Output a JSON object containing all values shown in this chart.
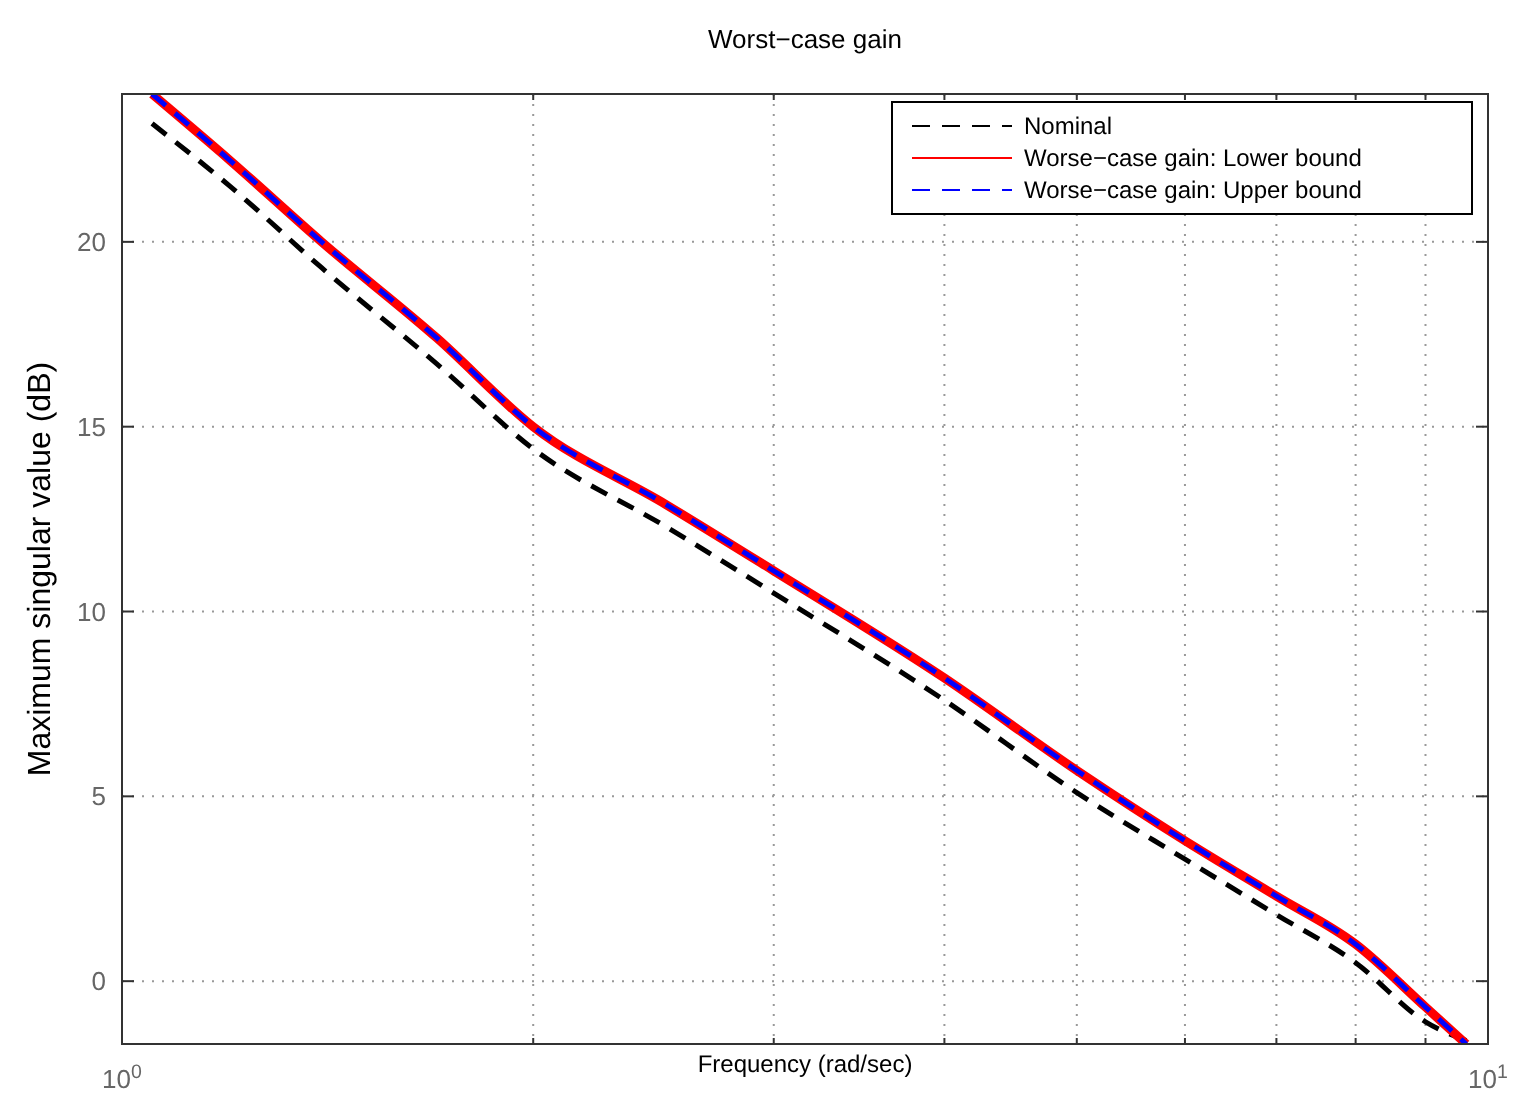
{
  "chart_data": {
    "type": "line",
    "title": "Worst−case gain",
    "xlabel": "Frequency  (rad/sec)",
    "ylabel": "Maximum singular value (dB)",
    "log": "x",
    "grid": true,
    "legend": "top right",
    "xlim": [
      1,
      10
    ],
    "ylim": [
      -1.7,
      24
    ],
    "xticks": [
      {
        "value": 1,
        "label": "10$^{0}$"
      },
      {
        "value": 2,
        "label": null
      },
      {
        "value": 3,
        "label": null
      },
      {
        "value": 4,
        "label": null
      },
      {
        "value": 5,
        "label": null
      },
      {
        "value": 6,
        "label": null
      },
      {
        "value": 7,
        "label": null
      },
      {
        "value": 8,
        "label": null
      },
      {
        "value": 9,
        "label": null
      },
      {
        "value": 10,
        "label": "10$^{1}$"
      }
    ],
    "yticks": [
      0,
      5,
      10,
      15,
      20
    ],
    "series": [
      {
        "name": "Nominal",
        "color": "#000000",
        "line_style": "dashed",
        "x": [
          1.052,
          1.2,
          1.4,
          1.7,
          2,
          2.5,
          3,
          4,
          5,
          6,
          7,
          8,
          9,
          9.8
        ],
        "values": [
          23.2,
          21.5,
          19.3,
          16.7,
          14.4,
          12.3,
          10.5,
          7.6,
          5.1,
          3.3,
          1.8,
          0.5,
          -1.1,
          -1.7
        ]
      },
      {
        "name": "Worse−case gain: Lower bound",
        "color": "#ff0000",
        "line_style": "solid",
        "x": [
          1.052,
          1.2,
          1.4,
          1.7,
          2,
          2.5,
          3,
          4,
          5,
          6,
          7,
          8,
          9,
          9.64
        ],
        "values": [
          24,
          22.2,
          20,
          17.4,
          15,
          12.9,
          11.1,
          8.2,
          5.7,
          3.8,
          2.3,
          1,
          -0.7,
          -1.7
        ]
      },
      {
        "name": "Worse−case gain: Upper bound",
        "color": "#0000ff",
        "line_style": "dashed",
        "x": [
          1.052,
          1.2,
          1.4,
          1.7,
          2,
          2.5,
          3,
          4,
          5,
          6,
          7,
          8,
          9,
          9.64
        ],
        "values": [
          24,
          22.2,
          20,
          17.4,
          15,
          12.9,
          11.1,
          8.2,
          5.7,
          3.8,
          2.3,
          1,
          -0.7,
          -1.7
        ]
      }
    ]
  }
}
